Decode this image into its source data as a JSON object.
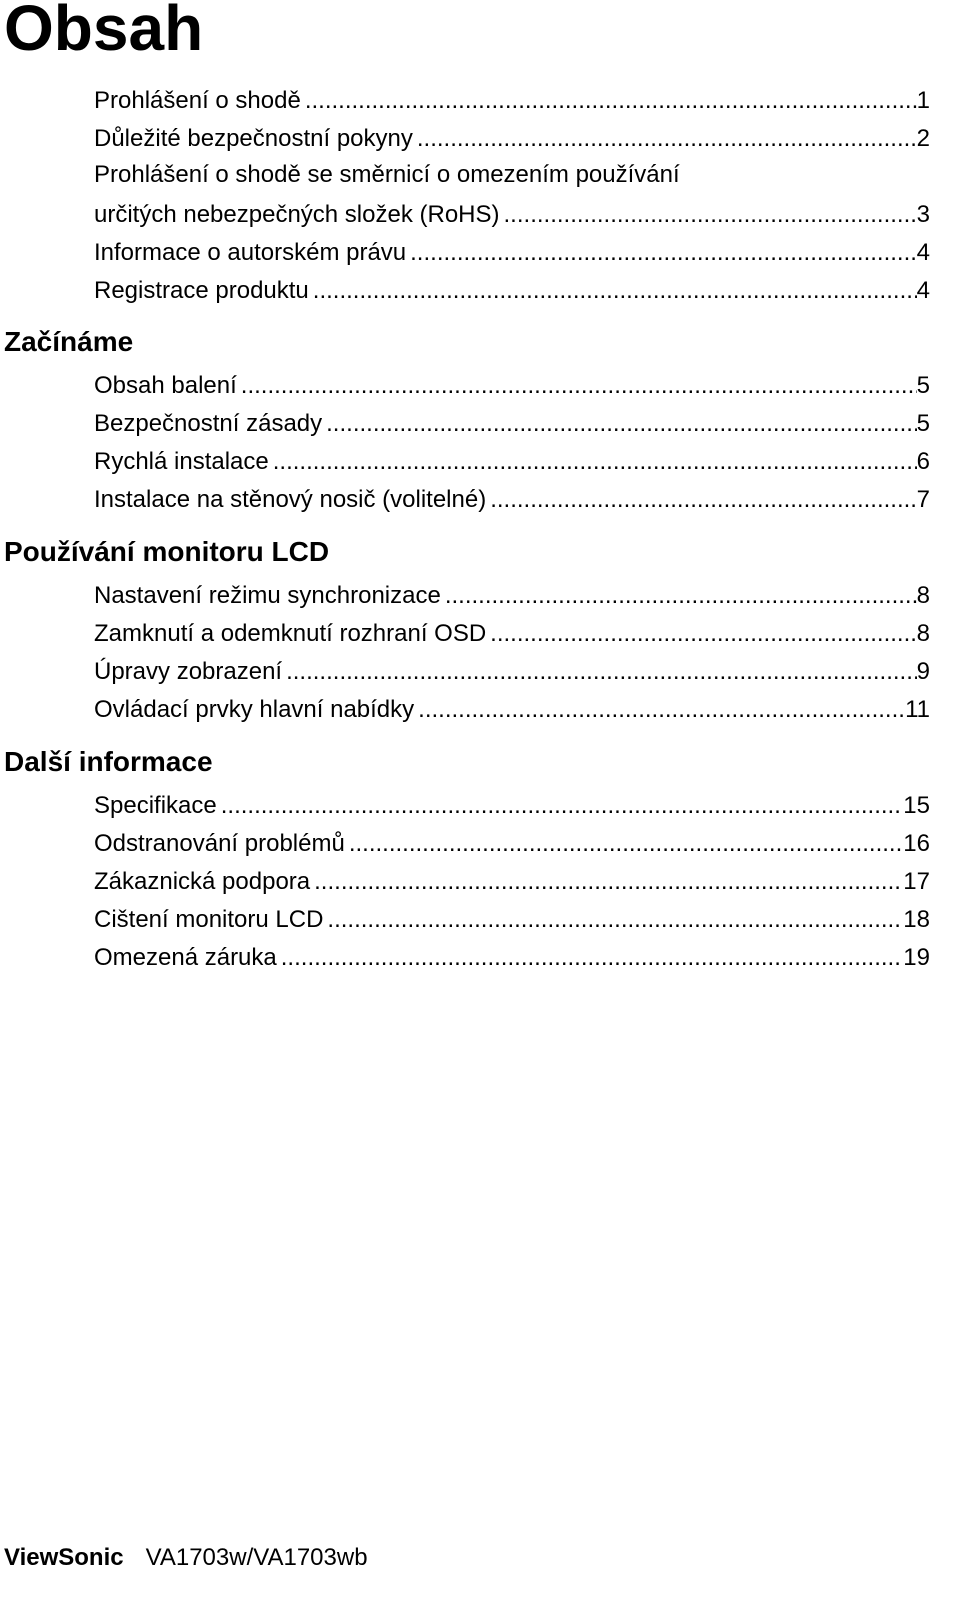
{
  "title": "Obsah",
  "sections": [
    {
      "heading": "",
      "entries": [
        {
          "title": "Prohlášení o shodě",
          "page": "1"
        },
        {
          "title": "Důležité bezpečnostní pokyny",
          "page": "2"
        },
        {
          "title_line1": "Prohlášení o shodě se směrnicí o omezením používání",
          "title": "určitých nebezpečných složek (RoHS)",
          "page": "3"
        },
        {
          "title": "Informace o autorském právu",
          "page": "4"
        },
        {
          "title": "Registrace produktu",
          "page": "4"
        }
      ]
    },
    {
      "heading": "Začínáme",
      "entries": [
        {
          "title": "Obsah balení",
          "page": "5"
        },
        {
          "title": "Bezpečnostní zásady",
          "page": "5"
        },
        {
          "title": "Rychlá instalace",
          "page": "6"
        },
        {
          "title": "Instalace na stěnový nosič (volitelné)",
          "page": "7"
        }
      ]
    },
    {
      "heading": "Používání monitoru LCD",
      "entries": [
        {
          "title": "Nastavení režimu synchronizace",
          "page": "8"
        },
        {
          "title": "Zamknutí a odemknutí rozhraní OSD",
          "page": "8"
        },
        {
          "title": "Úpravy zobrazení",
          "page": "9"
        },
        {
          "title": "Ovládací prvky hlavní nabídky",
          "page": "11"
        }
      ]
    },
    {
      "heading": "Další informace",
      "entries": [
        {
          "title": "Specifikace",
          "page": "15"
        },
        {
          "title": "Odstranování problémů",
          "page": "16"
        },
        {
          "title": "Zákaznická podpora",
          "page": "17"
        },
        {
          "title": "Cištení monitoru LCD",
          "page": "18"
        },
        {
          "title": "Omezená záruka",
          "page": "19"
        }
      ]
    }
  ],
  "footer": {
    "brand": "ViewSonic",
    "model": "VA1703w/VA1703wb"
  }
}
